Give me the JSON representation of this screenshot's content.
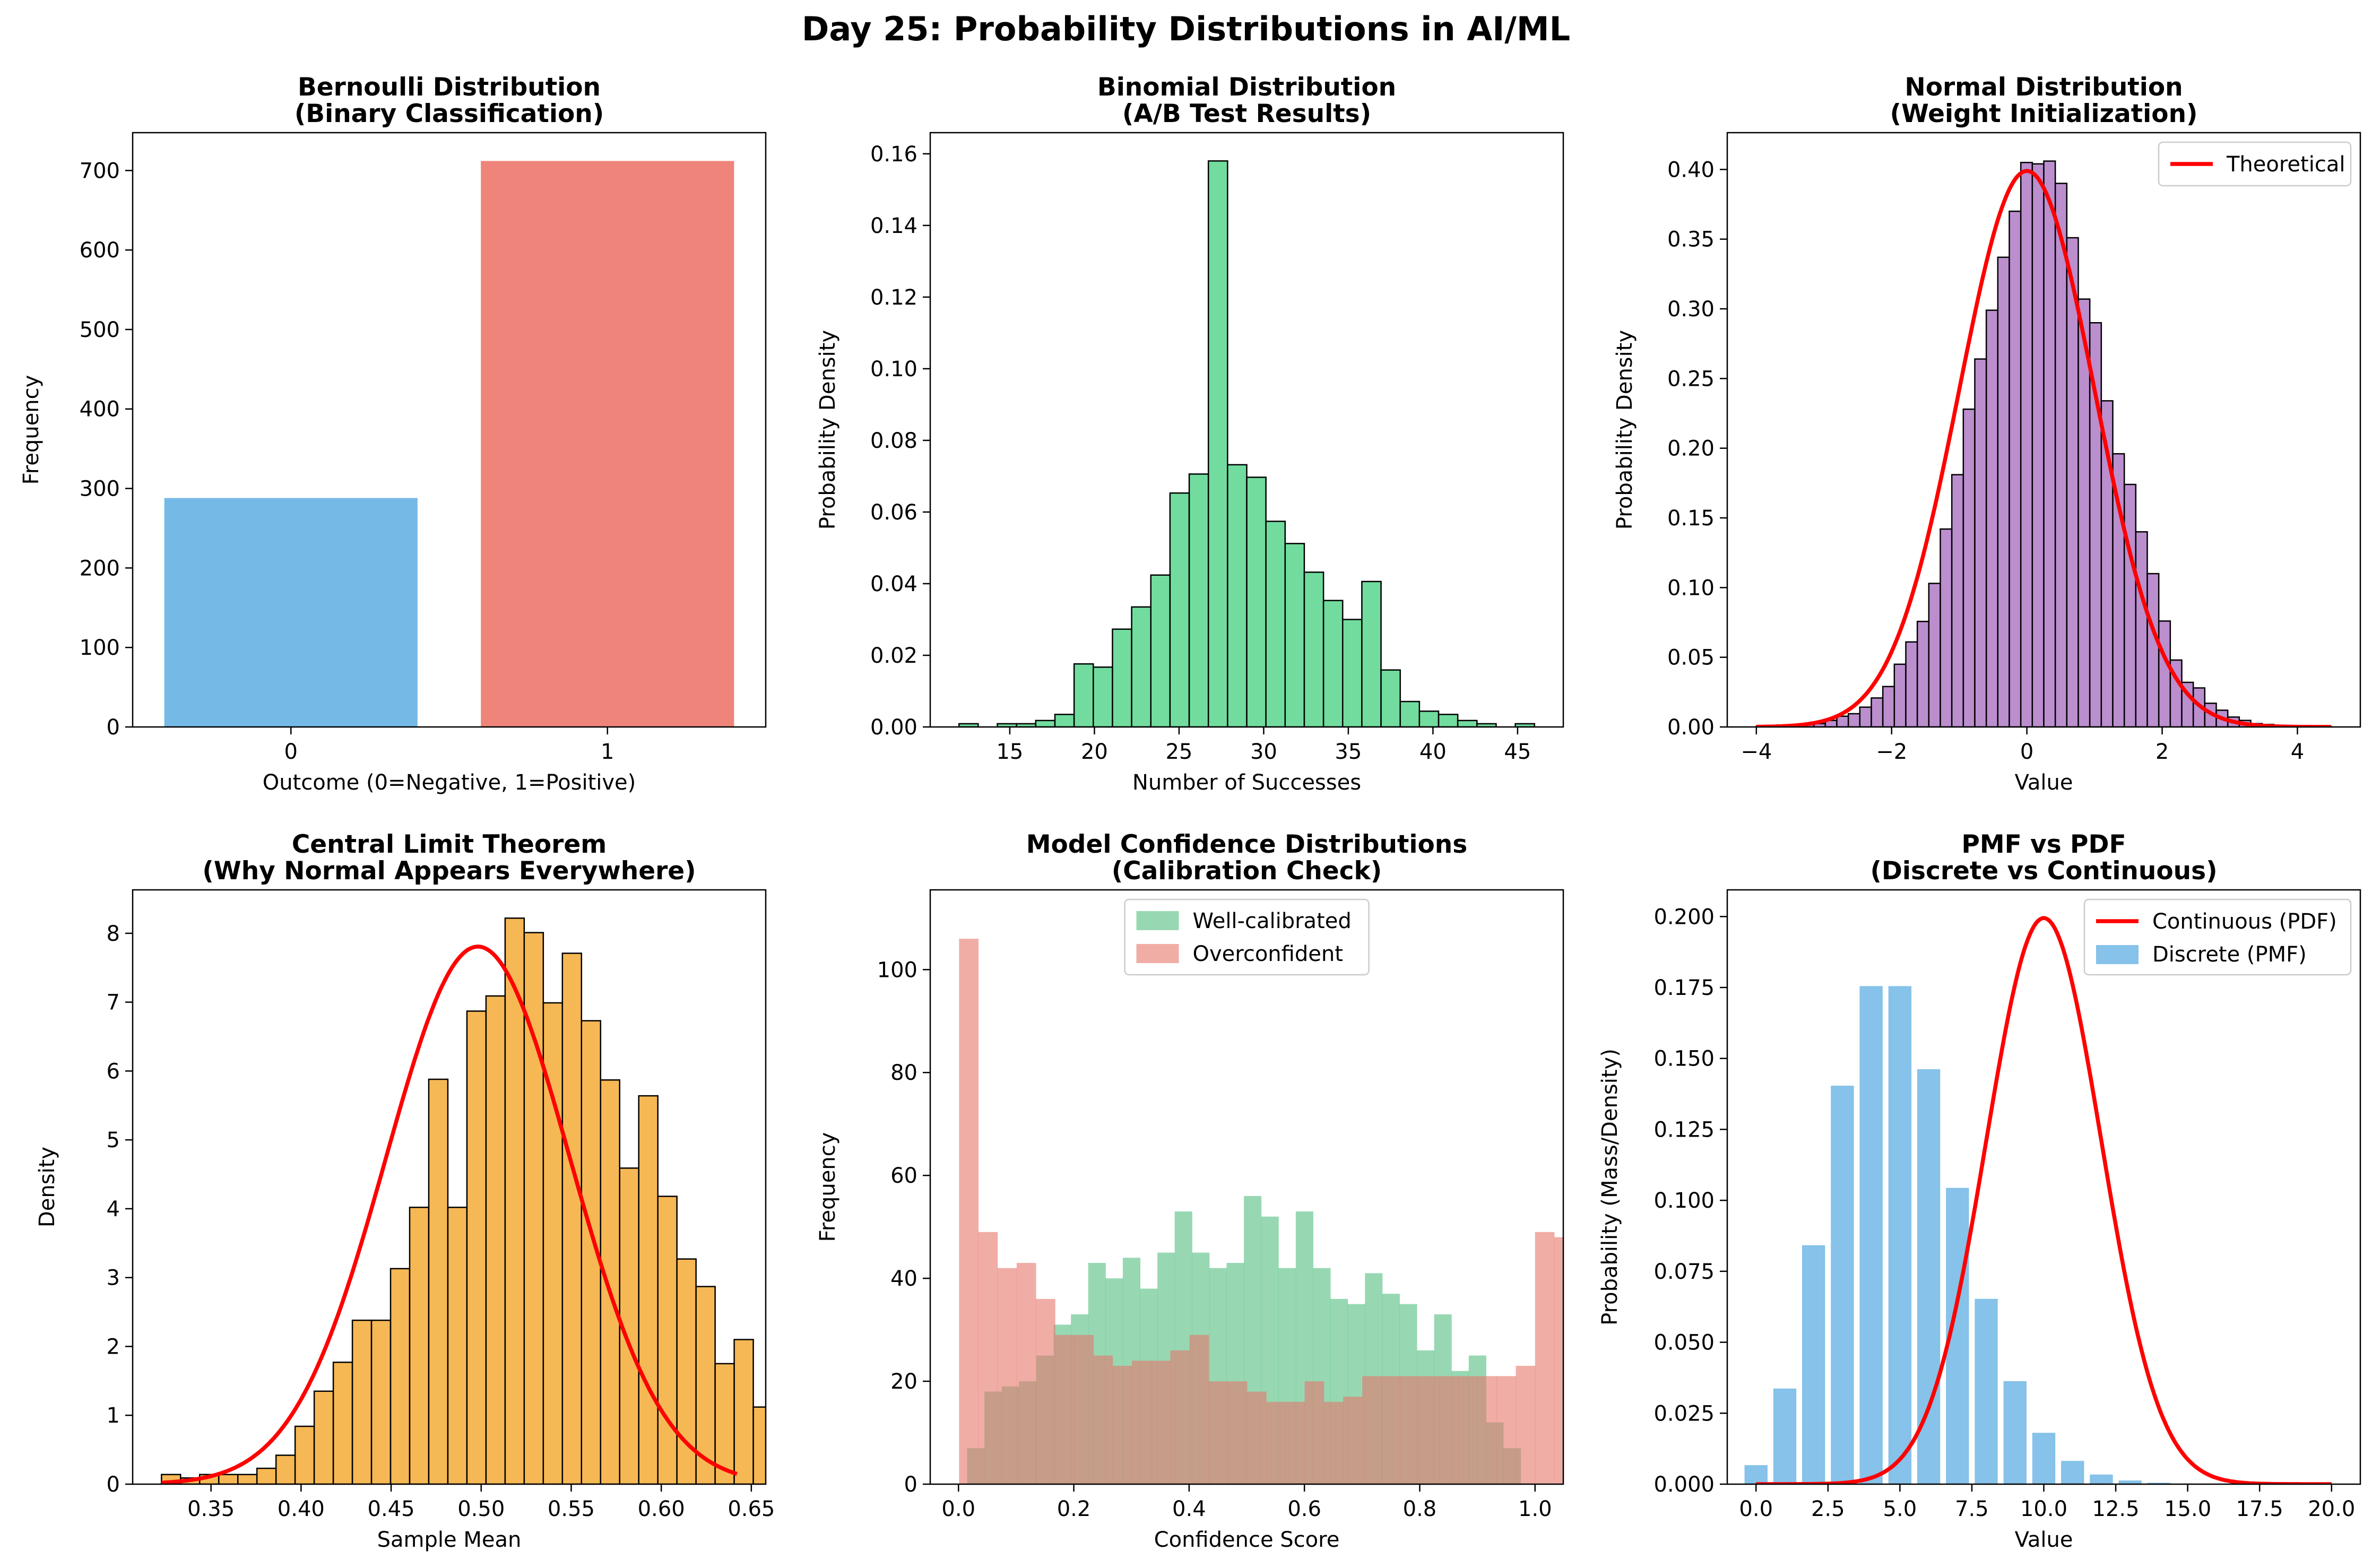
{
  "suptitle": "Day 25: Probability Distributions in AI/ML",
  "colors": {
    "blue": "#5DADE2",
    "red": "#EC7063",
    "green": "#58D68D",
    "purple": "#AF7AC5",
    "orange": "#F5B041",
    "theory": "#FF0000",
    "edge": "#000000"
  },
  "chart_data": [
    {
      "type": "bar",
      "title": "Bernoulli Distribution\n(Binary Classification)",
      "xlabel": "Outcome (0=Negative, 1=Positive)",
      "ylabel": "Frequency",
      "categories": [
        "0",
        "1"
      ],
      "values": [
        288,
        712
      ],
      "colors": [
        "#5DADE2",
        "#EC7063"
      ],
      "alpha": 0.85,
      "xlim": [
        -0.5,
        1.5
      ],
      "ylim": [
        0,
        747.6
      ],
      "yticks": [
        0,
        100,
        200,
        300,
        400,
        500,
        600,
        700
      ]
    },
    {
      "type": "histogram",
      "title": "Binomial Distribution\n(A/B Test Results)",
      "xlabel": "Number of Successes",
      "ylabel": "Probability Density",
      "color": "#58D68D",
      "alpha": 0.85,
      "bin_start": 12,
      "bin_width": 1.1333,
      "values": [
        0.0009,
        0.0,
        0.0009,
        0.0009,
        0.0018,
        0.0035,
        0.0176,
        0.0167,
        0.0273,
        0.0335,
        0.0424,
        0.0653,
        0.0706,
        0.158,
        0.0732,
        0.0697,
        0.0574,
        0.0512,
        0.0432,
        0.0353,
        0.03,
        0.0406,
        0.0159,
        0.0071,
        0.0044,
        0.0035,
        0.0018,
        0.0009,
        0.0,
        0.0009
      ],
      "xlim": [
        10.3,
        47.7
      ],
      "ylim": [
        0,
        0.1659
      ],
      "xticks": [
        15,
        20,
        25,
        30,
        35,
        40,
        45
      ],
      "yticks": [
        "0.00",
        "0.02",
        "0.04",
        "0.06",
        "0.08",
        "0.10",
        "0.12",
        "0.14",
        "0.16"
      ]
    },
    {
      "type": "histogram",
      "title": "Normal Distribution\n(Weight Initialization)",
      "xlabel": "Value",
      "ylabel": "Probability Density",
      "color": "#AF7AC5",
      "alpha": 0.85,
      "bin_start": -4.0,
      "bin_width": 0.17,
      "values": [
        0.0006,
        0.0006,
        0.0006,
        0.0012,
        0.0018,
        0.0024,
        0.0047,
        0.0077,
        0.0095,
        0.0142,
        0.0208,
        0.029,
        0.045,
        0.061,
        0.0757,
        0.103,
        0.142,
        0.181,
        0.228,
        0.264,
        0.299,
        0.337,
        0.37,
        0.405,
        0.404,
        0.406,
        0.39,
        0.351,
        0.307,
        0.29,
        0.234,
        0.196,
        0.174,
        0.14,
        0.11,
        0.076,
        0.048,
        0.032,
        0.028,
        0.017,
        0.012,
        0.0071,
        0.0047,
        0.0024,
        0.0018,
        0.0012,
        0.0006,
        0.0006,
        0.0006,
        0.0003
      ],
      "curve": {
        "name": "Theoretical",
        "mean": 0,
        "std": 1,
        "range": [
          -4,
          4.5
        ]
      },
      "legend": "upper right",
      "xlim": [
        -4.43,
        4.93
      ],
      "ylim": [
        0,
        0.4264
      ],
      "xticks": [
        -4,
        -2,
        0,
        2,
        4
      ],
      "yticks": [
        "0.00",
        "0.05",
        "0.10",
        "0.15",
        "0.20",
        "0.25",
        "0.30",
        "0.35",
        "0.40"
      ]
    },
    {
      "type": "histogram",
      "title": "Central Limit Theorem\n(Why Normal Appears Everywhere)",
      "xlabel": "Sample Mean",
      "ylabel": "Density",
      "color": "#F5B041",
      "alpha": 0.9,
      "bin_start": 0.3225,
      "bin_width": 0.0106,
      "values": [
        0.14,
        0.09,
        0.14,
        0.14,
        0.14,
        0.23,
        0.42,
        0.84,
        1.35,
        1.77,
        2.38,
        2.38,
        3.13,
        4.02,
        5.88,
        4.02,
        6.87,
        7.09,
        8.22,
        8.01,
        6.99,
        7.71,
        6.73,
        5.87,
        4.59,
        5.64,
        4.18,
        3.27,
        2.87,
        1.75,
        2.1,
        1.12,
        0.61,
        0.44,
        0.37,
        0.2
      ],
      "curve": {
        "mean": 0.4982,
        "std": 0.0511,
        "range": [
          0.3225,
          0.642
        ]
      },
      "xlim": [
        0.3065,
        0.658
      ],
      "ylim": [
        0,
        8.631
      ],
      "xticks": [
        "0.35",
        "0.40",
        "0.45",
        "0.50",
        "0.55",
        "0.60",
        "0.65"
      ],
      "yticks": [
        0,
        1,
        2,
        3,
        4,
        5,
        6,
        7,
        8
      ]
    },
    {
      "type": "histogram",
      "title": "Model Confidence Distributions\n(Calibration Check)",
      "xlabel": "Confidence Score",
      "ylabel": "Frequency",
      "alpha": 0.6,
      "legend": "upper center",
      "series": [
        {
          "name": "Well-calibrated",
          "color": "#52BE80",
          "bin_start": 0.015,
          "bin_width": 0.03,
          "values": [
            7,
            18,
            19,
            20,
            25,
            31,
            33,
            43,
            40,
            44,
            38,
            45,
            53,
            45,
            42,
            43,
            56,
            52,
            42,
            53,
            42,
            36,
            35,
            41,
            37,
            35,
            26,
            33,
            22,
            25,
            12,
            7
          ]
        },
        {
          "name": "Overconfident",
          "color": "#E6776A",
          "bin_start": 0.001,
          "bin_width": 0.0333,
          "values": [
            106,
            49,
            42,
            43,
            36,
            29,
            29,
            25,
            23,
            24,
            24,
            26,
            29,
            20,
            20,
            18,
            16,
            16,
            20,
            16,
            17,
            21,
            21,
            21,
            21,
            21,
            21,
            21,
            21,
            23,
            49,
            48
          ]
        }
      ],
      "xlim": [
        -0.049,
        1.049
      ],
      "ylim": [
        0,
        115.5
      ],
      "xticks": [
        "0.0",
        "0.2",
        "0.4",
        "0.6",
        "0.8",
        "1.0"
      ],
      "yticks": [
        0,
        20,
        40,
        60,
        80,
        100
      ]
    },
    {
      "type": "bar",
      "title": "PMF vs PDF\n(Discrete vs Continuous)",
      "xlabel": "Value",
      "ylabel": "Probability (Mass/Density)",
      "pmf": {
        "name": "Discrete (PMF)",
        "color": "#5DADE2",
        "alpha": 0.75,
        "x": [
          0,
          1,
          2,
          3,
          4,
          5,
          6,
          7,
          8,
          9,
          10,
          11,
          12,
          13,
          14,
          15
        ],
        "values": [
          0.0067,
          0.0337,
          0.0842,
          0.1404,
          0.1755,
          0.1755,
          0.1462,
          0.1044,
          0.0653,
          0.0363,
          0.0181,
          0.0082,
          0.0034,
          0.0013,
          0.0005,
          0.0002
        ]
      },
      "curve": {
        "name": "Continuous (PDF)",
        "mean": 10,
        "std": 2,
        "range": [
          0,
          20
        ]
      },
      "legend": "upper right",
      "xlim": [
        -1.0,
        21.0
      ],
      "ylim": [
        0,
        0.2094
      ],
      "xticks": [
        "0.0",
        "2.5",
        "5.0",
        "7.5",
        "10.0",
        "12.5",
        "15.0",
        "17.5",
        "20.0"
      ],
      "yticks": [
        "0.000",
        "0.025",
        "0.050",
        "0.075",
        "0.100",
        "0.125",
        "0.150",
        "0.175",
        "0.200"
      ]
    }
  ]
}
